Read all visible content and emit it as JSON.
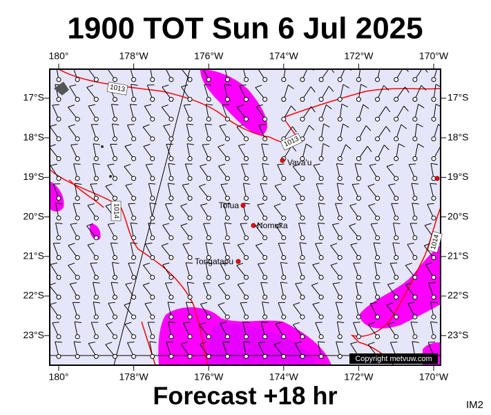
{
  "title": "1900 TOT Sun 6 Jul 2025",
  "footer": "Forecast +18 hr",
  "corner_label": "IM2",
  "copyright": "Copyright metvuw.com",
  "lon_labels": [
    "180°",
    "178°W",
    "176°W",
    "174°W",
    "172°W",
    "170°W"
  ],
  "lat_labels": [
    "17°S",
    "18°S",
    "19°S",
    "20°S",
    "21°S",
    "22°S",
    "23°S"
  ],
  "places": [
    {
      "name": "Vava'u"
    },
    {
      "name": "Tofua"
    },
    {
      "name": "Nomuka"
    },
    {
      "name": "Tongatapu"
    }
  ],
  "isobar_labels": [
    "1013",
    "1013",
    "1014",
    "1014"
  ]
}
